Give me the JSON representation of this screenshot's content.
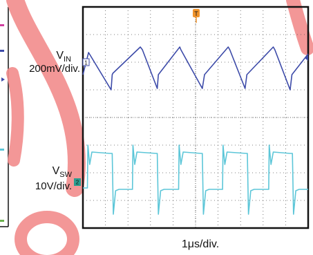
{
  "chart_data": {
    "type": "line",
    "title": "",
    "xlabel": "1μs/div.",
    "trigger_marker": "T",
    "grid": true,
    "divisions": {
      "x": 10,
      "y": 8
    },
    "x_range_us": [
      0,
      10
    ],
    "series": [
      {
        "key": "vin",
        "name_main": "V",
        "name_sub": "IN",
        "scale": "200mV/div.",
        "channel_marker": "1",
        "color": "#3c4aa8",
        "x": [
          0,
          0.25,
          1.25,
          1.3,
          1.33,
          2.55,
          2.64,
          3.3,
          3.35,
          4.3,
          4.35,
          5.3,
          5.4,
          6.45,
          6.52,
          7.2,
          7.28,
          8.45,
          8.52,
          9.2,
          9.28,
          10
        ],
        "y": [
          -0.45,
          0.35,
          -1.0,
          -0.45,
          -0.4,
          0.55,
          0.45,
          -0.95,
          -0.45,
          0.55,
          0.45,
          -0.95,
          -0.45,
          0.55,
          0.45,
          -0.95,
          -0.45,
          0.55,
          0.45,
          -1.0,
          -0.45,
          0.3
        ]
      },
      {
        "key": "vsw",
        "name_main": "V",
        "name_sub": "SW",
        "scale": "10V/div.",
        "channel_marker": "2",
        "color": "#5cc6d8",
        "x": [
          0,
          0.2,
          0.22,
          0.3,
          0.4,
          1.2,
          1.3,
          1.35,
          1.45,
          1.6,
          2.2,
          2.22,
          2.3,
          2.4,
          3.25,
          3.3,
          3.35,
          3.45,
          3.6,
          4.25,
          4.27,
          4.35,
          4.45,
          5.25,
          5.3,
          5.35,
          5.45,
          5.6,
          6.2,
          6.22,
          6.3,
          6.4,
          7.25,
          7.3,
          7.35,
          7.45,
          7.6,
          8.25,
          8.27,
          8.35,
          8.45,
          9.2,
          9.3,
          9.35,
          9.45,
          9.6,
          10
        ],
        "y": [
          -0.55,
          -0.55,
          1.0,
          0.3,
          0.75,
          0.7,
          0.7,
          -1.5,
          -0.65,
          -0.6,
          -0.6,
          1.0,
          0.3,
          0.75,
          0.7,
          0.7,
          -1.5,
          -0.65,
          -0.6,
          -0.6,
          1.0,
          0.3,
          0.75,
          0.7,
          0.7,
          -1.5,
          -0.65,
          -0.6,
          -0.6,
          1.0,
          0.3,
          0.75,
          0.7,
          0.7,
          -1.5,
          -0.65,
          -0.6,
          -0.6,
          1.0,
          0.3,
          0.75,
          0.7,
          0.7,
          -1.5,
          -0.65,
          -0.6,
          -0.6
        ]
      }
    ]
  }
}
